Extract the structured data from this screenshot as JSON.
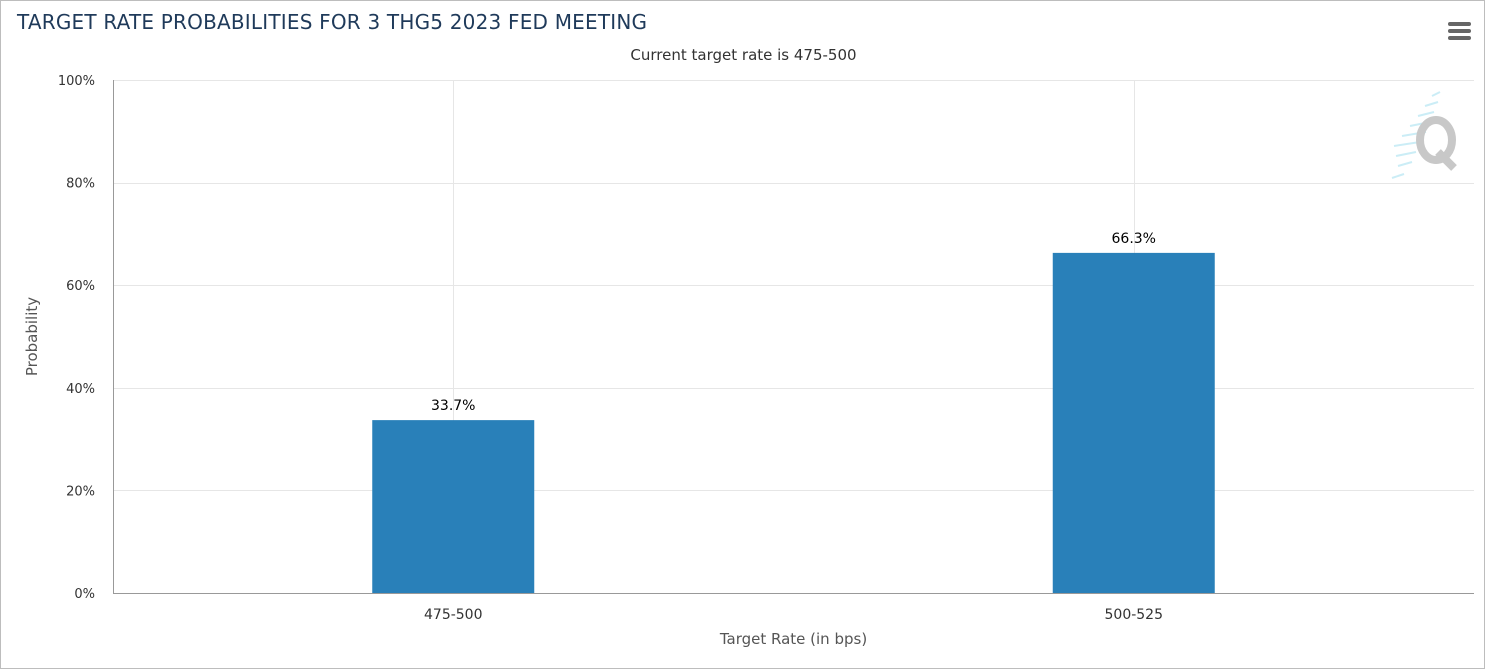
{
  "chart": {
    "title": "TARGET RATE PROBABILITIES FOR 3 THG5 2023 FED MEETING",
    "subtitle": "Current target rate is 475-500",
    "menu_icon": "hamburger-menu-icon",
    "watermark_icon": "q-logo-icon"
  },
  "chart_data": {
    "type": "bar",
    "categories": [
      "475-500",
      "500-525"
    ],
    "values": [
      33.7,
      66.3
    ],
    "data_labels": [
      "33.7%",
      "66.3%"
    ],
    "xlabel": "Target Rate (in bps)",
    "ylabel": "Probability",
    "ylim": [
      0,
      100
    ],
    "y_ticks": [
      0,
      20,
      40,
      60,
      80,
      100
    ],
    "y_tick_labels": [
      "0%",
      "20%",
      "40%",
      "60%",
      "80%",
      "100%"
    ],
    "grid": true,
    "bar_color": "#2980b9",
    "grid_color": "#e6e6e6",
    "axis_color": "#999999"
  }
}
